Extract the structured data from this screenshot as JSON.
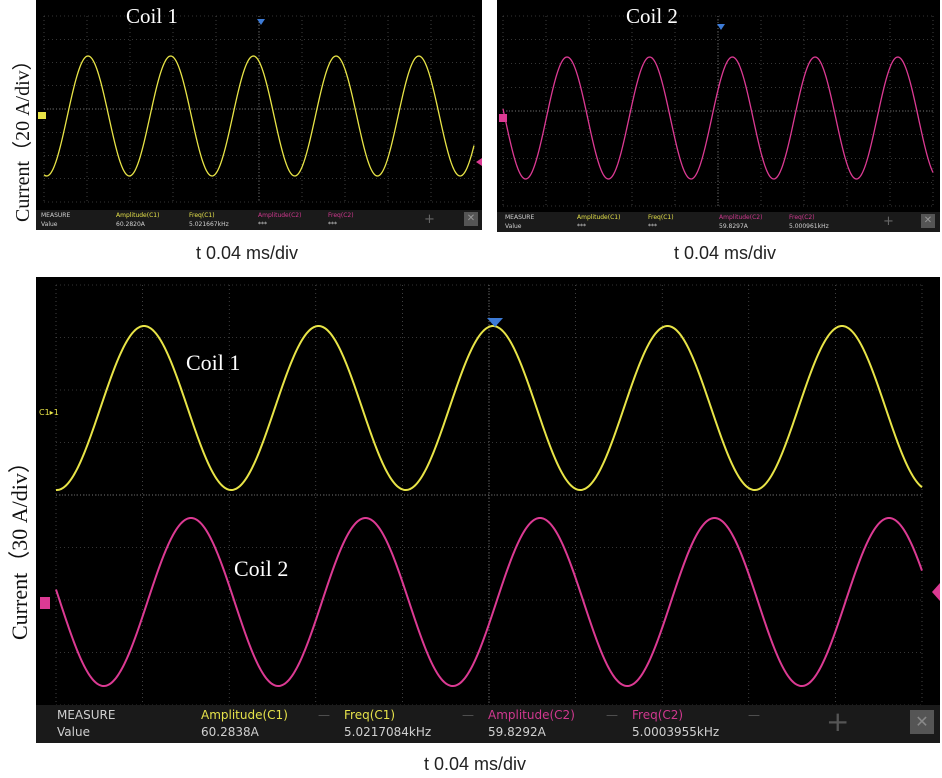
{
  "colors": {
    "c1": "#e8e447",
    "c2": "#dc3a93",
    "grid": "#6a6a6a",
    "trigger": "#3d7bd6"
  },
  "chart_data": [
    {
      "type": "line",
      "panel": "top-left",
      "coil_label": "Coil 1",
      "ylabel": "Current（20 A/div）",
      "xlabel": "t 0.04 ms/div",
      "series": [
        {
          "name": "Coil 1",
          "amplitude_A": 60.282,
          "freq_kHz": 5.02,
          "cycles_shown": 5.2
        }
      ],
      "measure": {
        "title": "MEASURE",
        "row": "Value",
        "cells": [
          {
            "h": "Amplitude(C1)",
            "v": "60.2820A",
            "c": "c1"
          },
          {
            "h": "Freq(C1)",
            "v": "5.021667kHz",
            "c": "c1"
          },
          {
            "h": "Amplitude(C2)",
            "v": "***",
            "c": "c2"
          },
          {
            "h": "Freq(C2)",
            "v": "***",
            "c": "c2"
          }
        ]
      }
    },
    {
      "type": "line",
      "panel": "top-right",
      "coil_label": "Coil 2",
      "xlabel": "t 0.04 ms/div",
      "series": [
        {
          "name": "Coil 2",
          "amplitude_A": 59.8297,
          "freq_kHz": 5.0,
          "cycles_shown": 5.2
        }
      ],
      "measure": {
        "title": "MEASURE",
        "row": "Value",
        "cells": [
          {
            "h": "Amplitude(C1)",
            "v": "***",
            "c": "c1"
          },
          {
            "h": "Freq(C1)",
            "v": "***",
            "c": "c1"
          },
          {
            "h": "Amplitude(C2)",
            "v": "59.8297A",
            "c": "c2"
          },
          {
            "h": "Freq(C2)",
            "v": "5.000961kHz",
            "c": "c2"
          }
        ]
      }
    },
    {
      "type": "line",
      "panel": "bottom",
      "coil_labels": [
        "Coil 1",
        "Coil 2"
      ],
      "ylabel": "Current（30 A/div）",
      "xlabel": "t 0.04 ms/div",
      "channel_marker": "C1▸1",
      "series": [
        {
          "name": "Coil 1",
          "amplitude_A": 60.2838,
          "freq_kHz": 5.0217084
        },
        {
          "name": "Coil 2",
          "amplitude_A": 59.8292,
          "freq_kHz": 5.0003955
        }
      ],
      "measure": {
        "title": "MEASURE",
        "row": "Value",
        "cells": [
          {
            "h": "Amplitude(C1)",
            "v": "60.2838A",
            "c": "c1"
          },
          {
            "h": "Freq(C1)",
            "v": "5.0217084kHz",
            "c": "c1"
          },
          {
            "h": "Amplitude(C2)",
            "v": "59.8292A",
            "c": "c2"
          },
          {
            "h": "Freq(C2)",
            "v": "5.0003955kHz",
            "c": "c2"
          }
        ]
      }
    }
  ]
}
